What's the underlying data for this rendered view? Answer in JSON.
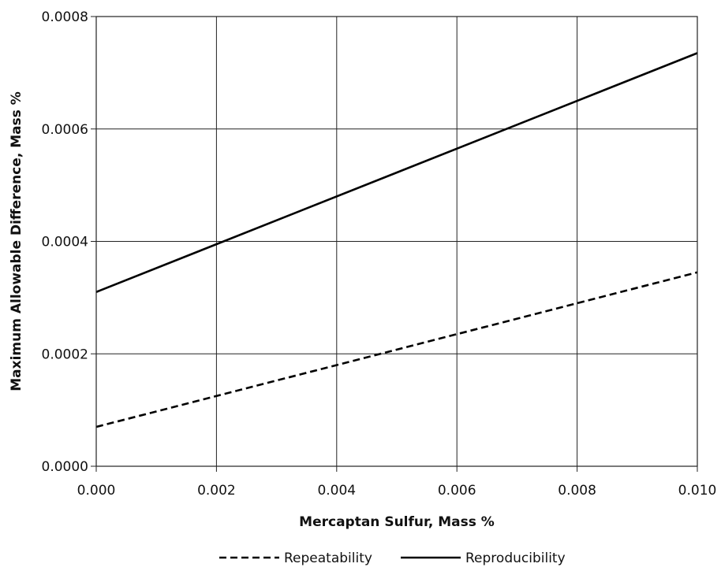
{
  "chart_data": {
    "type": "line",
    "xlabel": "Mercaptan Sulfur, Mass %",
    "ylabel": "Maximum Allowable Difference, Mass %",
    "xlim": [
      0.0,
      0.01
    ],
    "ylim": [
      0.0,
      0.0008
    ],
    "x_ticks": [
      "0.000",
      "0.002",
      "0.004",
      "0.006",
      "0.008",
      "0.010"
    ],
    "y_ticks": [
      "0.0000",
      "0.0002",
      "0.0004",
      "0.0006",
      "0.0008"
    ],
    "grid": true,
    "legend_position": "bottom",
    "series": [
      {
        "name": "Repeatability",
        "style": "dashed",
        "color": "#000000",
        "x": [
          0.0,
          0.01
        ],
        "y": [
          7e-05,
          0.000345
        ]
      },
      {
        "name": "Reproducibility",
        "style": "solid",
        "color": "#000000",
        "x": [
          0.0,
          0.01
        ],
        "y": [
          0.00031,
          0.000735
        ]
      }
    ]
  }
}
